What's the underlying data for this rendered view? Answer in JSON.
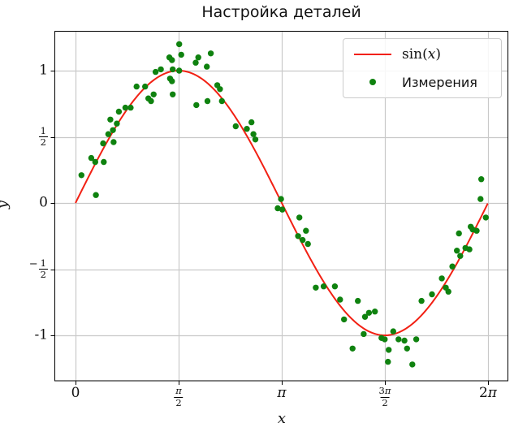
{
  "title": "Настройка деталей",
  "axes": {
    "xlabel": "x",
    "ylabel": "y",
    "x_ticks": [
      {
        "label": "0",
        "value": 0
      },
      {
        "label": "π/2",
        "value": 1.5708
      },
      {
        "label": "π",
        "value": 3.1416
      },
      {
        "label": "3π/2",
        "value": 4.7124
      },
      {
        "label": "2π",
        "value": 6.2832
      }
    ],
    "y_ticks": [
      {
        "label": "1",
        "value": 1
      },
      {
        "label": "1/2",
        "value": 0.5
      },
      {
        "label": "0",
        "value": 0
      },
      {
        "label": "-1/2",
        "value": -0.5
      },
      {
        "label": "-1",
        "value": -1
      }
    ]
  },
  "legend": {
    "entries": [
      {
        "label": "sin(x)",
        "math": true,
        "marker": "line"
      },
      {
        "label": "Измерения",
        "math": false,
        "marker": "dot"
      }
    ]
  },
  "colors": {
    "curve_red": "#f22013",
    "dot_green": "#0f820f",
    "grid": "#c9c9c9",
    "spine": "#000000",
    "legend_border": "#cccccc",
    "background": "#ffffff"
  },
  "chart_data": {
    "type": "line+scatter",
    "title": "Настройка деталей",
    "xlabel": "x",
    "ylabel": "y",
    "xlim": [
      -0.31,
      6.6
    ],
    "ylim": [
      -1.34,
      1.3
    ],
    "grid": true,
    "legend_position": "upper right",
    "series": [
      {
        "name": "sin(x)",
        "type": "line",
        "color": "#f22013",
        "function": "sin(x)",
        "x_range": [
          0,
          6.2832
        ]
      },
      {
        "name": "Измерения",
        "type": "scatter",
        "color": "#0f820f",
        "marker": "circle",
        "points": [
          [
            0.09,
            0.21
          ],
          [
            0.31,
            0.06
          ],
          [
            0.24,
            0.34
          ],
          [
            0.3,
            0.31
          ],
          [
            0.43,
            0.31
          ],
          [
            0.42,
            0.45
          ],
          [
            0.5,
            0.52
          ],
          [
            0.58,
            0.46
          ],
          [
            0.57,
            0.55
          ],
          [
            0.53,
            0.63
          ],
          [
            0.63,
            0.6
          ],
          [
            0.66,
            0.69
          ],
          [
            0.76,
            0.72
          ],
          [
            0.84,
            0.72
          ],
          [
            0.93,
            0.88
          ],
          [
            1.06,
            0.88
          ],
          [
            1.11,
            0.79
          ],
          [
            1.15,
            0.77
          ],
          [
            1.19,
            0.82
          ],
          [
            1.22,
            0.99
          ],
          [
            1.3,
            1.01
          ],
          [
            1.43,
            1.1
          ],
          [
            1.47,
            1.08
          ],
          [
            1.44,
            0.94
          ],
          [
            1.47,
            0.92
          ],
          [
            1.48,
            0.82
          ],
          [
            1.58,
            1.2
          ],
          [
            1.61,
            1.12
          ],
          [
            1.48,
            1.01
          ],
          [
            1.58,
            1.0
          ],
          [
            1.83,
            1.06
          ],
          [
            1.87,
            1.1
          ],
          [
            2.0,
            1.03
          ],
          [
            2.06,
            1.13
          ],
          [
            1.84,
            0.74
          ],
          [
            2.01,
            0.77
          ],
          [
            2.16,
            0.89
          ],
          [
            2.2,
            0.86
          ],
          [
            2.23,
            0.77
          ],
          [
            2.44,
            0.58
          ],
          [
            2.61,
            0.56
          ],
          [
            2.68,
            0.61
          ],
          [
            2.71,
            0.52
          ],
          [
            2.74,
            0.48
          ],
          [
            3.08,
            -0.04
          ],
          [
            3.13,
            0.03
          ],
          [
            3.15,
            -0.05
          ],
          [
            3.41,
            -0.11
          ],
          [
            3.39,
            -0.25
          ],
          [
            3.46,
            -0.28
          ],
          [
            3.51,
            -0.21
          ],
          [
            3.54,
            -0.31
          ],
          [
            3.66,
            -0.64
          ],
          [
            3.78,
            -0.63
          ],
          [
            3.95,
            -0.63
          ],
          [
            4.03,
            -0.73
          ],
          [
            4.09,
            -0.88
          ],
          [
            4.22,
            -1.1
          ],
          [
            4.3,
            -0.74
          ],
          [
            4.39,
            -0.99
          ],
          [
            4.41,
            -0.86
          ],
          [
            4.47,
            -0.83
          ],
          [
            4.56,
            -0.82
          ],
          [
            4.66,
            -1.02
          ],
          [
            4.71,
            -1.03
          ],
          [
            4.76,
            -1.2
          ],
          [
            4.77,
            -1.11
          ],
          [
            4.84,
            -0.97
          ],
          [
            4.92,
            -1.03
          ],
          [
            5.01,
            -1.04
          ],
          [
            5.05,
            -1.1
          ],
          [
            5.13,
            -1.22
          ],
          [
            5.19,
            -1.03
          ],
          [
            5.27,
            -0.74
          ],
          [
            5.43,
            -0.69
          ],
          [
            5.58,
            -0.57
          ],
          [
            5.64,
            -0.64
          ],
          [
            5.68,
            -0.67
          ],
          [
            5.74,
            -0.48
          ],
          [
            5.81,
            -0.36
          ],
          [
            5.84,
            -0.23
          ],
          [
            5.86,
            -0.4
          ],
          [
            5.94,
            -0.34
          ],
          [
            6.0,
            -0.35
          ],
          [
            6.02,
            -0.18
          ],
          [
            6.05,
            -0.2
          ],
          [
            6.11,
            -0.21
          ],
          [
            6.17,
            0.03
          ],
          [
            6.18,
            0.18
          ],
          [
            6.25,
            -0.11
          ]
        ]
      }
    ]
  }
}
